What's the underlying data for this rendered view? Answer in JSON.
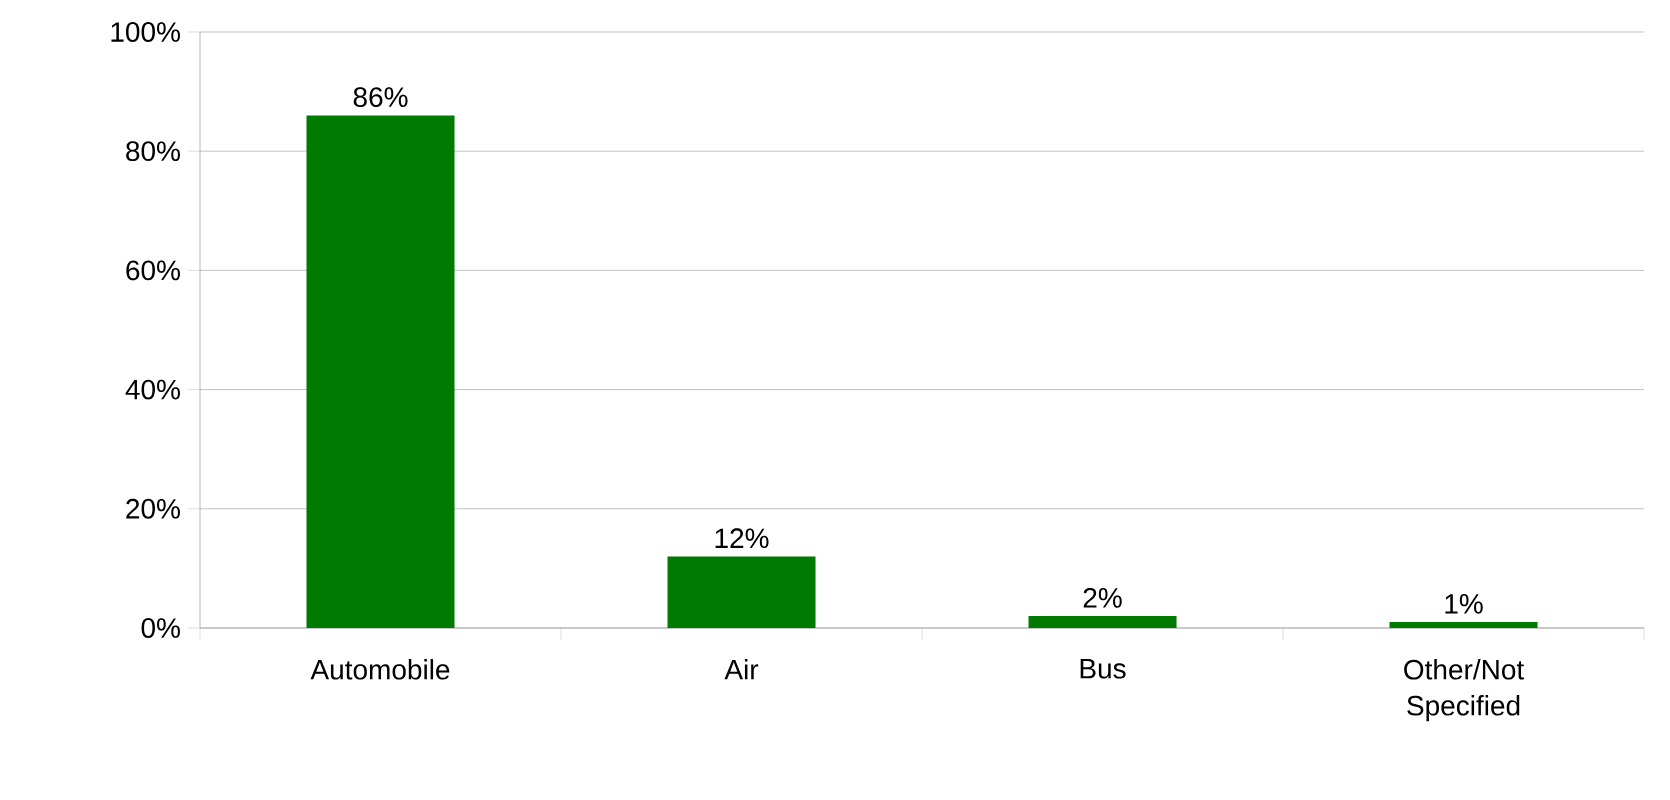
{
  "chart_data": {
    "type": "bar",
    "categories": [
      "Automobile",
      "Air",
      "Bus",
      "Other/Not Specified"
    ],
    "values": [
      86,
      12,
      2,
      1
    ],
    "value_labels": [
      "86%",
      "12%",
      "2%",
      "1%"
    ],
    "color": "#007a00",
    "ylim": [
      0,
      100
    ],
    "yticks": [
      {
        "value": 0,
        "label": "0%"
      },
      {
        "value": 20,
        "label": "20%"
      },
      {
        "value": 40,
        "label": "40%"
      },
      {
        "value": 60,
        "label": "60%"
      },
      {
        "value": 80,
        "label": "80%"
      },
      {
        "value": 100,
        "label": "100%"
      }
    ],
    "grid": "y"
  }
}
